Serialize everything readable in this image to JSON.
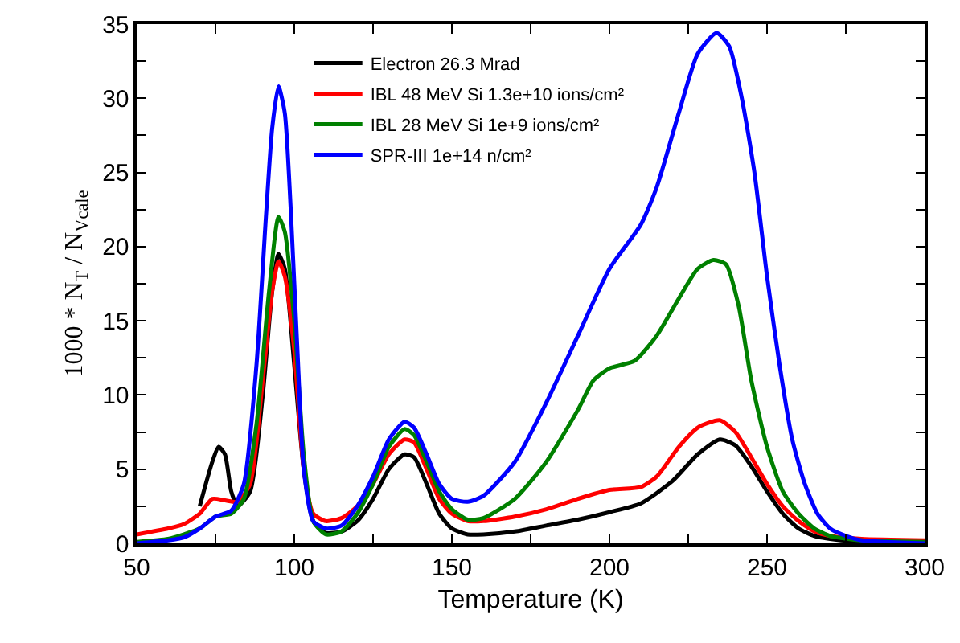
{
  "chart_data": {
    "type": "line",
    "xlabel": "Temperature (K)",
    "ylabel": "1000 * N$_{T}$ / N$_{Vcale}$",
    "xlim": [
      50,
      300
    ],
    "ylim": [
      0,
      35
    ],
    "xticks": [
      50,
      {
        "value": 75,
        "label": null
      },
      100,
      {
        "value": 125,
        "label": null
      },
      150,
      {
        "value": 175,
        "label": null
      },
      200,
      {
        "value": 225,
        "label": null
      },
      250,
      {
        "value": 275,
        "label": null
      },
      300
    ],
    "yticks": [
      0,
      {
        "value": 2.5,
        "label": null
      },
      5,
      {
        "value": 7.5,
        "label": null
      },
      10,
      {
        "value": 12.5,
        "label": null
      },
      15,
      {
        "value": 17.5,
        "label": null
      },
      20,
      {
        "value": 22.5,
        "label": null
      },
      25,
      {
        "value": 27.5,
        "label": null
      },
      30,
      {
        "value": 32.5,
        "label": null
      },
      35
    ],
    "grid": false,
    "legend": "top left",
    "marker": "none",
    "line_style": "solid",
    "series": [
      {
        "name": "Electron 26.3 Mrad",
        "color": "#000000",
        "x": [
          70,
          74,
          76,
          78,
          80,
          82,
          86,
          90,
          93,
          95,
          97,
          100,
          103,
          106,
          110,
          115,
          120,
          125,
          130,
          135,
          138,
          142,
          146,
          150,
          155,
          160,
          170,
          180,
          190,
          200,
          210,
          220,
          228,
          235,
          240,
          245,
          250,
          255,
          260,
          265,
          270,
          280,
          300
        ],
        "values": [
          2.5,
          5.5,
          6.5,
          6,
          3.5,
          2.5,
          3.5,
          10,
          17,
          19.5,
          18.5,
          12,
          5,
          1.5,
          0.7,
          0.8,
          1.5,
          3,
          5,
          6,
          5.8,
          4,
          2,
          1,
          0.6,
          0.6,
          0.8,
          1.2,
          1.6,
          2.1,
          2.7,
          4.2,
          6,
          7,
          6.6,
          5.2,
          3.5,
          2,
          1,
          0.5,
          0.3,
          0.1,
          0
        ]
      },
      {
        "name": "IBL 48 MeV Si 1.3e+10 ions/cm²",
        "color": "#ff0000",
        "x": [
          50,
          60,
          65,
          70,
          74,
          78,
          82,
          86,
          90,
          93,
          95,
          97,
          100,
          103,
          106,
          110,
          115,
          120,
          125,
          130,
          135,
          138,
          142,
          146,
          150,
          155,
          160,
          170,
          180,
          190,
          200,
          210,
          215,
          222,
          228,
          235,
          240,
          245,
          250,
          255,
          260,
          265,
          270,
          280,
          300
        ],
        "values": [
          0.6,
          1,
          1.3,
          2,
          3,
          2.9,
          2.8,
          4,
          11,
          17,
          19,
          18,
          13,
          5,
          2,
          1.5,
          1.7,
          2.5,
          4,
          6,
          7,
          6.8,
          5,
          3,
          2,
          1.5,
          1.5,
          1.8,
          2.3,
          3,
          3.6,
          3.8,
          4.5,
          6.5,
          7.8,
          8.3,
          7.5,
          5.8,
          4,
          2.5,
          1.5,
          0.8,
          0.5,
          0.3,
          0.2
        ]
      },
      {
        "name": "IBL 28 MeV Si 1e+9 ions/cm²",
        "color": "#008000",
        "x": [
          50,
          60,
          65,
          70,
          75,
          80,
          84,
          88,
          92,
          95,
          97,
          100,
          103,
          106,
          110,
          115,
          120,
          125,
          130,
          135,
          138,
          142,
          146,
          150,
          155,
          160,
          170,
          180,
          190,
          195,
          200,
          208,
          215,
          222,
          228,
          233,
          237,
          241,
          245,
          250,
          255,
          260,
          265,
          270,
          280,
          300
        ],
        "values": [
          0.1,
          0.3,
          0.6,
          1,
          1.8,
          2,
          3,
          8,
          17,
          22,
          21,
          15,
          6,
          1.5,
          0.6,
          0.8,
          2,
          4,
          6.5,
          7.7,
          7.3,
          5.5,
          3.5,
          2.3,
          1.6,
          1.7,
          3,
          5.5,
          9,
          11,
          11.8,
          12.3,
          14,
          16.5,
          18.5,
          19.1,
          18.8,
          16,
          11,
          6.5,
          3.5,
          2,
          1,
          0.5,
          0.2,
          0.1
        ]
      },
      {
        "name": "SPR-III 1e+14 n/cm²",
        "color": "#0000ff",
        "x": [
          50,
          60,
          65,
          70,
          75,
          80,
          84,
          88,
          91,
          93,
          95,
          97,
          99,
          101,
          103,
          106,
          110,
          115,
          120,
          125,
          130,
          135,
          138,
          142,
          146,
          150,
          155,
          160,
          170,
          180,
          190,
          200,
          210,
          215,
          222,
          228,
          234,
          238,
          242,
          246,
          250,
          254,
          258,
          262,
          266,
          270,
          275,
          280,
          300
        ],
        "values": [
          0,
          0.2,
          0.4,
          1,
          1.8,
          2.2,
          4,
          12,
          22,
          28,
          30.8,
          29,
          22,
          13,
          5,
          1.5,
          1,
          1.2,
          2.5,
          4.5,
          7,
          8.2,
          7.8,
          6,
          4,
          3,
          2.8,
          3.2,
          5.5,
          9.5,
          14,
          18.5,
          21.5,
          24,
          29,
          33,
          34.4,
          33.5,
          30,
          25,
          18,
          12,
          7,
          4,
          2,
          1,
          0.5,
          0.2,
          0
        ]
      }
    ]
  }
}
